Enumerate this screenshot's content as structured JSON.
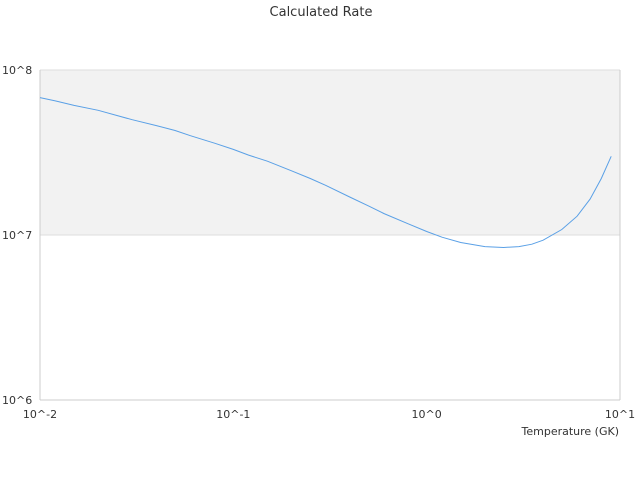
{
  "chart_data": {
    "type": "line",
    "title": "Calculated Rate",
    "xlabel": "Temperature (GK)",
    "ylabel": "",
    "xscale": "log",
    "yscale": "log",
    "xlim": [
      0.01,
      10
    ],
    "ylim": [
      1000000,
      100000000
    ],
    "x_ticks": [
      "10^-2",
      "10^-1",
      "10^0",
      "10^1"
    ],
    "y_ticks": [
      "10^6",
      "10^7",
      "10^8"
    ],
    "grid": true,
    "legend": "none",
    "colors": {
      "line": "#5aa0e6",
      "band": "#f2f2f2",
      "grid": "#dddddd",
      "axis": "#cccccc"
    },
    "series": [
      {
        "x": [
          0.01,
          0.012,
          0.015,
          0.02,
          0.025,
          0.03,
          0.04,
          0.05,
          0.06,
          0.08,
          0.1,
          0.12,
          0.15,
          0.2,
          0.25,
          0.3,
          0.4,
          0.5,
          0.6,
          0.8,
          1.0,
          1.2,
          1.5,
          2.0,
          2.5,
          3.0,
          3.5,
          4.0,
          5.0,
          6.0,
          7.0,
          8.0,
          9.0
        ],
        "values": [
          68000000,
          65000000,
          61000000,
          57000000,
          53000000,
          50000000,
          46000000,
          43000000,
          40000000,
          36000000,
          33000000,
          30500000,
          28000000,
          24500000,
          22000000,
          20000000,
          17000000,
          15000000,
          13500000,
          11700000,
          10500000,
          9700000,
          9000000,
          8500000,
          8400000,
          8500000,
          8800000,
          9300000,
          10800000,
          13000000,
          16500000,
          22000000,
          30000000
        ]
      }
    ]
  }
}
